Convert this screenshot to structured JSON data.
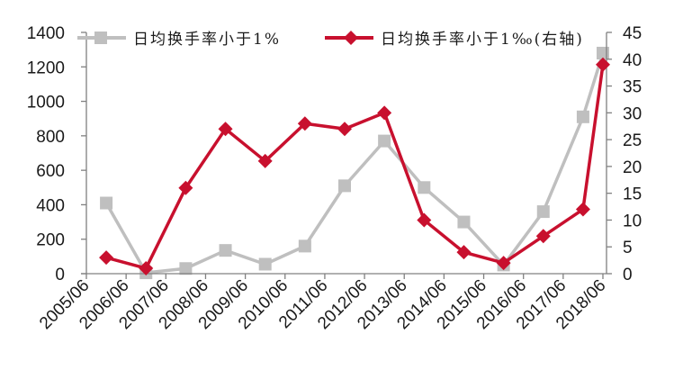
{
  "chart_data": {
    "type": "line",
    "title": "",
    "xlabel": "",
    "ylabel": "",
    "y2label": "",
    "x_tick_labels": [
      "2005/06",
      "2006/06",
      "2007/06",
      "2008/06",
      "2009/06",
      "2010/06",
      "2011/06",
      "2012/06",
      "2013/06",
      "2014/06",
      "2015/06",
      "2016/06",
      "2017/06",
      "2018/06"
    ],
    "x": [
      "2005/12",
      "2006/12",
      "2007/12",
      "2008/12",
      "2009/12",
      "2010/12",
      "2011/12",
      "2012/12",
      "2013/12",
      "2014/12",
      "2015/12",
      "2016/12",
      "2017/12",
      "2018/06"
    ],
    "x_positions": [
      0.5,
      1.5,
      2.5,
      3.5,
      4.5,
      5.5,
      6.5,
      7.5,
      8.5,
      9.5,
      10.5,
      11.5,
      12.5,
      13.0
    ],
    "ylim": [
      0,
      1400
    ],
    "y_ticks": [
      0,
      200,
      400,
      600,
      800,
      1000,
      1200,
      1400
    ],
    "y2lim": [
      0,
      45
    ],
    "y2_ticks": [
      0,
      5,
      10,
      15,
      20,
      25,
      30,
      35,
      40,
      45
    ],
    "grid": false,
    "legend_position": "top",
    "series": [
      {
        "name": "日均换手率小于1%",
        "axis": "left",
        "color": "#BFBFBF",
        "marker": "square",
        "values": [
          410,
          5,
          30,
          135,
          55,
          160,
          510,
          770,
          500,
          300,
          50,
          360,
          910,
          1280
        ]
      },
      {
        "name": "日均换手率小于1‰(右轴)",
        "axis": "right",
        "color": "#C8102E",
        "marker": "diamond",
        "values": [
          3,
          1,
          16,
          27,
          21,
          28,
          27,
          30,
          10,
          4,
          2,
          7,
          12,
          39
        ]
      }
    ]
  },
  "legend": {
    "items": [
      {
        "label": "日均换手率小于1%",
        "icon": "gray-square-line-icon"
      },
      {
        "label": "日均换手率小于1‰(右轴)",
        "icon": "red-diamond-line-icon"
      }
    ]
  }
}
